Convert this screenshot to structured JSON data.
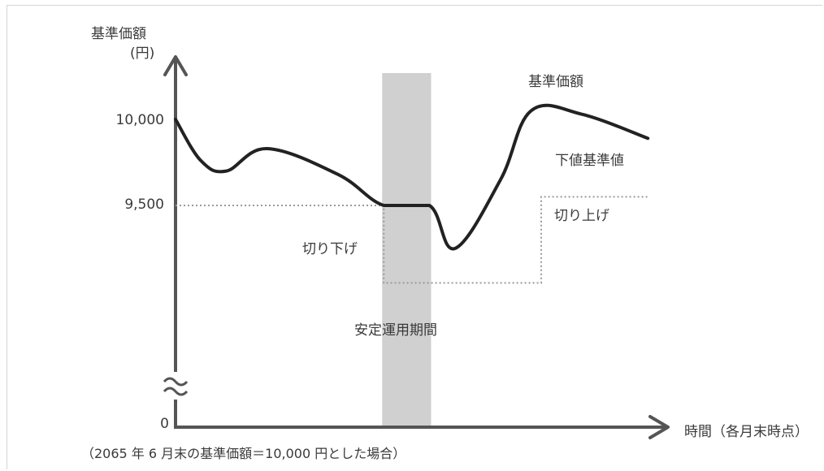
{
  "chart_data": {
    "type": "line",
    "ylabel_line1": "基準価額",
    "ylabel_line2": "(円)",
    "xlabel": "時間（各月末時点）",
    "footnote": "（2065 年 6 月末の基準価額＝10,000 円とした場合）",
    "y_ticks": [
      "10,000",
      "9,500",
      "0"
    ],
    "annotations": {
      "stable_period": "安定運用期間",
      "cut_down": "切り下げ",
      "raise_up": "切り上げ"
    },
    "series": [
      {
        "name": "基準価額",
        "color": "#222222",
        "style": "solid",
        "points": [
          [
            0,
            10000
          ],
          [
            0.5,
            9760
          ],
          [
            1.0,
            9700
          ],
          [
            1.8,
            9830
          ],
          [
            3.2,
            9680
          ],
          [
            4.1,
            9500
          ],
          [
            5.0,
            9500
          ],
          [
            5.5,
            9250
          ],
          [
            6.4,
            9650
          ],
          [
            7.0,
            10050
          ],
          [
            8.0,
            10030
          ],
          [
            9.3,
            9890
          ]
        ]
      },
      {
        "name": "下値基準値",
        "color": "#9a9a9a",
        "style": "dotted",
        "points": [
          [
            0,
            9500
          ],
          [
            4.1,
            9500
          ],
          [
            4.1,
            9050
          ],
          [
            7.2,
            9050
          ],
          [
            7.2,
            9550
          ],
          [
            9.3,
            9550
          ]
        ]
      }
    ],
    "stable_period_x": [
      4.1,
      5.0
    ],
    "xlim": [
      0,
      10
    ],
    "colors": {
      "axis": "#555555",
      "band": "#d0d0d0"
    }
  }
}
